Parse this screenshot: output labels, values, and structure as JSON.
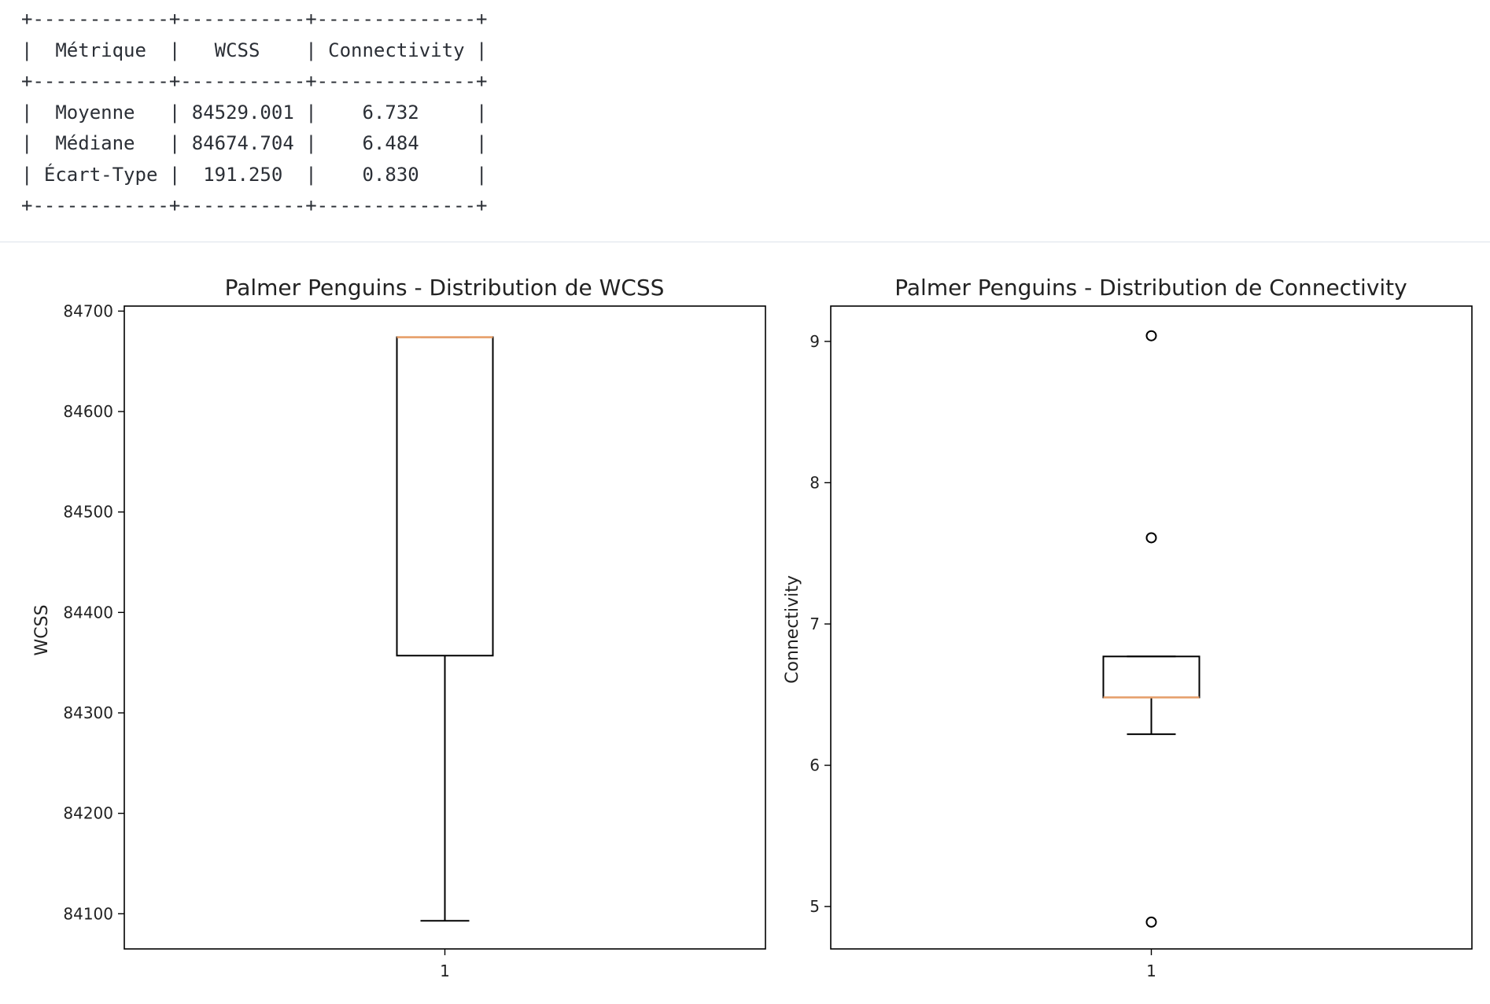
{
  "stats_table": {
    "headers": [
      "Métrique",
      "WCSS",
      "Connectivity"
    ],
    "rows": [
      [
        "Moyenne",
        "84529.001",
        "6.732"
      ],
      [
        "Médiane",
        "84674.704",
        "6.484"
      ],
      [
        "Écart-Type",
        "191.250",
        "0.830"
      ]
    ]
  },
  "chart_data": [
    {
      "type": "box",
      "title": "Palmer Penguins - Distribution de WCSS",
      "ylabel": "WCSS",
      "xticks": [
        "1"
      ],
      "yticks": [
        84100,
        84200,
        84300,
        84400,
        84500,
        84600,
        84700
      ],
      "ylim": [
        84065,
        84705
      ],
      "box": {
        "whisker_low": 84093,
        "q1": 84357,
        "median": 84674,
        "q3": 84674,
        "whisker_high": 84674
      },
      "outliers": [],
      "colors": {
        "box": "#000000",
        "median": "#e8a06b"
      }
    },
    {
      "type": "box",
      "title": "Palmer Penguins - Distribution de Connectivity",
      "ylabel": "Connectivity",
      "xticks": [
        "1"
      ],
      "yticks": [
        5,
        6,
        7,
        8,
        9
      ],
      "ylim": [
        4.7,
        9.25
      ],
      "box": {
        "whisker_low": 6.22,
        "q1": 6.48,
        "median": 6.48,
        "q3": 6.77,
        "whisker_high": 6.77
      },
      "outliers": [
        9.04,
        7.61,
        4.89
      ],
      "colors": {
        "box": "#000000",
        "median": "#e8a06b"
      }
    }
  ]
}
